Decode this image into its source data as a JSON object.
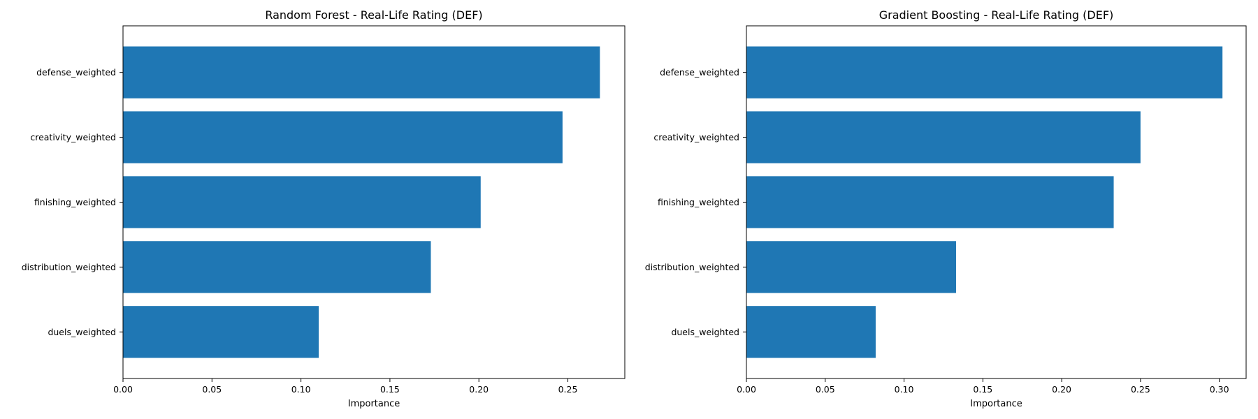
{
  "chart_data": [
    {
      "type": "bar",
      "orientation": "horizontal",
      "title": "Random Forest - Real-Life Rating (DEF)",
      "xlabel": "Importance",
      "ylabel": "",
      "categories": [
        "defense_weighted",
        "creativity_weighted",
        "finishing_weighted",
        "distribution_weighted",
        "duels_weighted"
      ],
      "values": [
        0.268,
        0.247,
        0.201,
        0.173,
        0.11
      ],
      "xlim": [
        0,
        0.282
      ],
      "xticks": [
        "0.00",
        "0.05",
        "0.10",
        "0.15",
        "0.20",
        "0.25"
      ],
      "bar_color": "#1f77b4",
      "grid": false
    },
    {
      "type": "bar",
      "orientation": "horizontal",
      "title": "Gradient Boosting - Real-Life Rating (DEF)",
      "xlabel": "Importance",
      "ylabel": "",
      "categories": [
        "defense_weighted",
        "creativity_weighted",
        "finishing_weighted",
        "distribution_weighted",
        "duels_weighted"
      ],
      "values": [
        0.302,
        0.25,
        0.233,
        0.133,
        0.082
      ],
      "xlim": [
        0,
        0.317
      ],
      "xticks": [
        "0.00",
        "0.05",
        "0.10",
        "0.15",
        "0.20",
        "0.25",
        "0.30"
      ],
      "bar_color": "#1f77b4",
      "grid": false
    }
  ]
}
